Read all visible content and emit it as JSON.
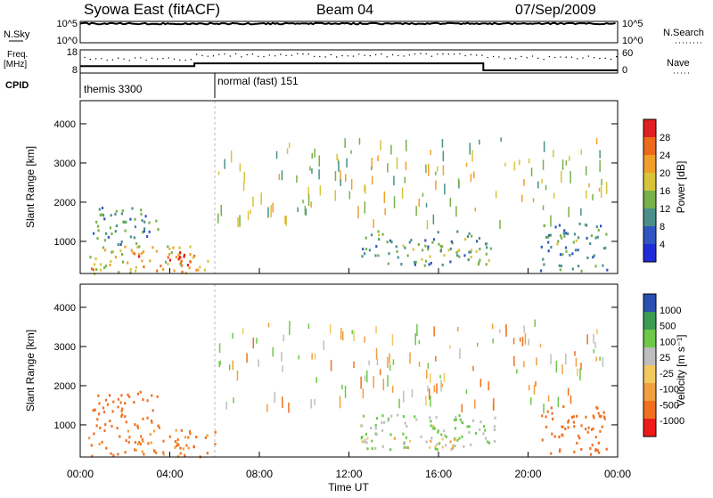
{
  "header": {
    "title": "Syowa East (fitACF)",
    "beam": "Beam 04",
    "date": "07/Sep/2009"
  },
  "strips": {
    "nsky": {
      "label": "N.Sky",
      "ticks": [
        "10^5",
        "10^0"
      ],
      "right_label": "N.Search",
      "right_ticks": [
        "10^5",
        "10^0"
      ]
    },
    "freq": {
      "label_line1": "Freq.",
      "label_line2": "[MHz]",
      "ticks": [
        "18",
        "8"
      ],
      "right_label": "Nave",
      "right_ticks": [
        "60",
        "0"
      ]
    },
    "cpid": {
      "label": "CPID",
      "programs": [
        "themis 3300",
        "normal (fast) 151"
      ]
    }
  },
  "panels": {
    "power": {
      "ylabel": "Slant Range [km]",
      "cbar_label": "Power [dB]",
      "cbar_ticks": [
        "28",
        "24",
        "20",
        "16",
        "12",
        "8",
        "4"
      ]
    },
    "velocity": {
      "ylabel": "Slant Range [km]",
      "cbar_label": "Velocity [m s⁻¹]",
      "cbar_ticks": [
        "1000",
        "500",
        "100",
        "25",
        "-25",
        "-100",
        "-500",
        "-1000"
      ]
    }
  },
  "xaxis": {
    "label": "Time UT",
    "ticks": [
      "00:00",
      "04:00",
      "08:00",
      "12:00",
      "16:00",
      "20:00",
      "00:00"
    ]
  },
  "yaxis": {
    "ticks": [
      "1000",
      "2000",
      "3000",
      "4000"
    ]
  },
  "colors": {
    "power_scale": [
      "#1f2dd8",
      "#2f55c0",
      "#4a8f8a",
      "#78b04a",
      "#d8c43a",
      "#f0a02a",
      "#ec6a1c",
      "#e02020"
    ],
    "velocity_scale": [
      "#ee1a1a",
      "#f07020",
      "#f0a040",
      "#f2c860",
      "#bebebe",
      "#6ec84a",
      "#3c9a54",
      "#2a4fb0"
    ]
  },
  "chart_data": [
    {
      "type": "line",
      "title": "N.Sky",
      "x_range": [
        "00:00",
        "24:00"
      ],
      "ylim": [
        1,
        100000
      ],
      "yscale": "log",
      "series": [
        {
          "name": "N.Sky",
          "x": [
            0,
            12,
            24
          ],
          "values": [
            30000,
            30000,
            30000
          ]
        }
      ]
    },
    {
      "type": "line",
      "title": "Freq.",
      "x_range": [
        "00:00",
        "24:00"
      ],
      "ylim": [
        8,
        18
      ],
      "series": [
        {
          "name": "Freq.",
          "x": [
            0,
            5.1,
            5.1,
            18,
            18,
            24
          ],
          "values": [
            11,
            11,
            12.2,
            12.2,
            9.2,
            9.2
          ]
        }
      ]
    },
    {
      "type": "heatmap",
      "title": "Power",
      "xlabel": "Time UT",
      "ylabel": "Slant Range [km]",
      "x_range": [
        "00:00",
        "24:00"
      ],
      "ylim": [
        180,
        4590
      ],
      "colorbar_label": "Power [dB]",
      "colorbar_range": [
        0,
        30
      ],
      "regions": [
        {
          "t_start": 0.3,
          "t_end": 6.0,
          "r_min": 200,
          "r_max": 900,
          "power": 18
        },
        {
          "t_start": 0.5,
          "t_end": 3.5,
          "r_min": 900,
          "r_max": 1900,
          "power": 10
        },
        {
          "t_start": 2.0,
          "t_end": 5.0,
          "r_min": 400,
          "r_max": 750,
          "power": 24
        },
        {
          "t_start": 12.5,
          "t_end": 18.5,
          "r_min": 400,
          "r_max": 1300,
          "power": 12
        },
        {
          "t_start": 20.5,
          "t_end": 23.5,
          "r_min": 250,
          "r_max": 1500,
          "power": 10
        }
      ]
    },
    {
      "type": "heatmap",
      "title": "Velocity",
      "xlabel": "Time UT",
      "ylabel": "Slant Range [km]",
      "x_range": [
        "00:00",
        "24:00"
      ],
      "ylim": [
        180,
        4590
      ],
      "colorbar_label": "Velocity [m s⁻¹]",
      "colorbar_range": [
        -1000,
        1000
      ],
      "regions": [
        {
          "t_start": 0.3,
          "t_end": 6.0,
          "r_min": 200,
          "r_max": 900,
          "velocity": -150
        },
        {
          "t_start": 0.5,
          "t_end": 3.5,
          "r_min": 900,
          "r_max": 1900,
          "velocity": -300
        },
        {
          "t_start": 12.5,
          "t_end": 18.5,
          "r_min": 400,
          "r_max": 1300,
          "velocity": 120
        },
        {
          "t_start": 12.5,
          "t_end": 17.0,
          "r_min": 400,
          "r_max": 700,
          "velocity": 0
        },
        {
          "t_start": 20.5,
          "t_end": 23.5,
          "r_min": 250,
          "r_max": 1500,
          "velocity": -200
        }
      ]
    }
  ]
}
